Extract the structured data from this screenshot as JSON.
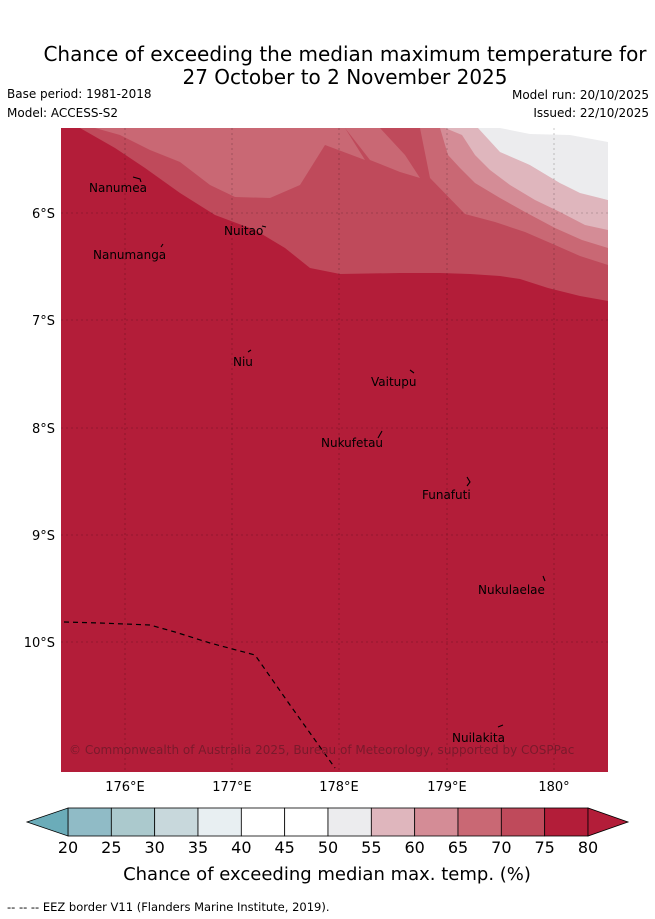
{
  "title": {
    "line1": "Chance of exceeding the median maximum temperature for",
    "line2": "27 October to 2 November 2025"
  },
  "meta": {
    "base_period": "Base period: 1981-2018",
    "model": "Model: ACCESS-S2",
    "model_run": "Model run: 20/10/2025",
    "issued": "Issued: 22/10/2025"
  },
  "map": {
    "lat_labels": [
      "6°S",
      "7°S",
      "8°S",
      "9°S",
      "10°S"
    ],
    "lon_labels": [
      "176°E",
      "177°E",
      "178°E",
      "179°E",
      "180°"
    ],
    "places": [
      "Nanumea",
      "Nuitao",
      "Nanumanga",
      "Niu",
      "Vaitupu",
      "Nukufetau",
      "Funafuti",
      "Nukulaelae",
      "Nuilakita"
    ],
    "copyright": "© Commonwealth of Australia 2025, Bureau of Meteorology, supported by COSPPac"
  },
  "colorbar": {
    "ticks": [
      "20",
      "25",
      "30",
      "35",
      "40",
      "45",
      "50",
      "55",
      "60",
      "65",
      "70",
      "75",
      "80"
    ],
    "colors": [
      "#6bacb9",
      "#90bbc6",
      "#abc9cd",
      "#c8d8dc",
      "#e8eff2",
      "#ffffff",
      "#ffffff",
      "#ececee",
      "#dfb6bd",
      "#d48c96",
      "#c96874",
      "#bf4a5b",
      "#b31d39"
    ],
    "label": "Chance of exceeding median max. temp. (%)"
  },
  "footer": "--  --  -- EEZ border V11 (Flanders Marine Institute, 2019)."
}
